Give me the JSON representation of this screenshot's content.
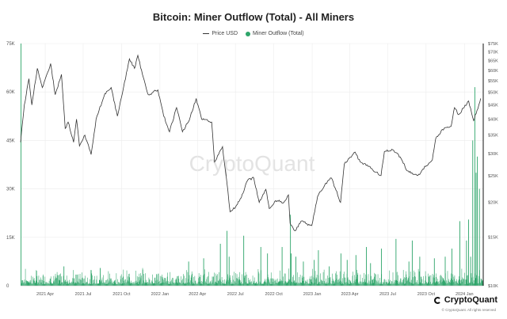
{
  "header": {
    "title": "Bitcoin: Miner Outflow (Total) - All Miners",
    "legend": [
      "Price USD",
      "Miner Outflow (Total)"
    ]
  },
  "colors": {
    "price": "#333333",
    "outflow": "#2ea56a",
    "grid": "#ececec",
    "watermark": "#e3e3e3"
  },
  "watermark": "CryptoQuant",
  "brand": {
    "name": "CryptoQuant",
    "copyright": "© CryptoQuant. All rights reserved"
  },
  "chart_data": {
    "type": "line",
    "title": "Bitcoin: Miner Outflow (Total) - All Miners",
    "x_range": [
      "2021-02-01",
      "2024-02-15"
    ],
    "x_ticks": [
      {
        "label": "2021 Apr",
        "date": "2021-04-01"
      },
      {
        "label": "2021 Jul",
        "date": "2021-07-01"
      },
      {
        "label": "2021 Oct",
        "date": "2021-10-01"
      },
      {
        "label": "2022 Jan",
        "date": "2022-01-01"
      },
      {
        "label": "2022 Apr",
        "date": "2022-04-01"
      },
      {
        "label": "2022 Jul",
        "date": "2022-07-01"
      },
      {
        "label": "2022 Oct",
        "date": "2022-10-01"
      },
      {
        "label": "2023 Jan",
        "date": "2023-01-01"
      },
      {
        "label": "2023 Apr",
        "date": "2023-04-01"
      },
      {
        "label": "2023 Jul",
        "date": "2023-07-01"
      },
      {
        "label": "2023 Oct",
        "date": "2023-10-01"
      },
      {
        "label": "2024 Jan",
        "date": "2024-01-01"
      }
    ],
    "left_axis": {
      "series": "Miner Outflow (Total)",
      "scale": "linear",
      "range": [
        0,
        75000
      ],
      "ticks": [
        {
          "label": "0",
          "value": 0
        },
        {
          "label": "15K",
          "value": 15000
        },
        {
          "label": "30K",
          "value": 30000
        },
        {
          "label": "45K",
          "value": 45000
        },
        {
          "label": "60K",
          "value": 60000
        },
        {
          "label": "75K",
          "value": 75000
        }
      ]
    },
    "right_axis": {
      "series": "Price USD",
      "scale": "log",
      "range": [
        10000,
        75000
      ],
      "ticks": [
        {
          "label": "$10K",
          "value": 10000
        },
        {
          "label": "$15K",
          "value": 15000
        },
        {
          "label": "$20K",
          "value": 20000
        },
        {
          "label": "$25K",
          "value": 25000
        },
        {
          "label": "$30K",
          "value": 30000
        },
        {
          "label": "$35K",
          "value": 35000
        },
        {
          "label": "$40K",
          "value": 40000
        },
        {
          "label": "$45K",
          "value": 45000
        },
        {
          "label": "$50K",
          "value": 50000
        },
        {
          "label": "$55K",
          "value": 55000
        },
        {
          "label": "$60K",
          "value": 60000
        },
        {
          "label": "$65K",
          "value": 65000
        },
        {
          "label": "$70K",
          "value": 70000
        },
        {
          "label": "$75K",
          "value": 75000
        }
      ]
    },
    "series": [
      {
        "name": "Price USD",
        "type": "line",
        "axis": "right",
        "points": [
          [
            "2021-02-01",
            33000
          ],
          [
            "2021-02-10",
            45000
          ],
          [
            "2021-02-21",
            56000
          ],
          [
            "2021-02-28",
            45000
          ],
          [
            "2021-03-13",
            61000
          ],
          [
            "2021-03-25",
            52000
          ],
          [
            "2021-04-14",
            63500
          ],
          [
            "2021-04-25",
            49000
          ],
          [
            "2021-05-10",
            58000
          ],
          [
            "2021-05-19",
            37000
          ],
          [
            "2021-05-26",
            39000
          ],
          [
            "2021-06-08",
            33000
          ],
          [
            "2021-06-15",
            40000
          ],
          [
            "2021-06-22",
            32000
          ],
          [
            "2021-07-05",
            35000
          ],
          [
            "2021-07-20",
            29800
          ],
          [
            "2021-08-01",
            40000
          ],
          [
            "2021-08-22",
            49500
          ],
          [
            "2021-09-06",
            52000
          ],
          [
            "2021-09-21",
            41000
          ],
          [
            "2021-10-01",
            48000
          ],
          [
            "2021-10-20",
            66000
          ],
          [
            "2021-11-01",
            61000
          ],
          [
            "2021-11-09",
            68000
          ],
          [
            "2021-11-20",
            58000
          ],
          [
            "2021-12-04",
            49000
          ],
          [
            "2021-12-27",
            51000
          ],
          [
            "2022-01-10",
            41000
          ],
          [
            "2022-01-24",
            36000
          ],
          [
            "2022-02-10",
            44000
          ],
          [
            "2022-02-24",
            36000
          ],
          [
            "2022-03-10",
            39000
          ],
          [
            "2022-03-29",
            47500
          ],
          [
            "2022-04-11",
            40000
          ],
          [
            "2022-05-05",
            39000
          ],
          [
            "2022-05-12",
            28000
          ],
          [
            "2022-05-31",
            31800
          ],
          [
            "2022-06-13",
            22000
          ],
          [
            "2022-06-18",
            18500
          ],
          [
            "2022-07-01",
            19200
          ],
          [
            "2022-07-15",
            20800
          ],
          [
            "2022-07-30",
            24000
          ],
          [
            "2022-08-14",
            24500
          ],
          [
            "2022-08-27",
            20000
          ],
          [
            "2022-09-12",
            22300
          ],
          [
            "2022-09-20",
            19000
          ],
          [
            "2022-10-05",
            20300
          ],
          [
            "2022-10-25",
            20000
          ],
          [
            "2022-11-05",
            21300
          ],
          [
            "2022-11-09",
            16800
          ],
          [
            "2022-11-21",
            15800
          ],
          [
            "2022-12-05",
            17100
          ],
          [
            "2022-12-31",
            16500
          ],
          [
            "2023-01-14",
            21000
          ],
          [
            "2023-01-31",
            23100
          ],
          [
            "2023-02-16",
            24500
          ],
          [
            "2023-03-10",
            20000
          ],
          [
            "2023-03-19",
            27500
          ],
          [
            "2023-04-14",
            30400
          ],
          [
            "2023-04-26",
            28000
          ],
          [
            "2023-05-15",
            27000
          ],
          [
            "2023-06-15",
            25000
          ],
          [
            "2023-06-23",
            30500
          ],
          [
            "2023-07-13",
            31000
          ],
          [
            "2023-07-31",
            29200
          ],
          [
            "2023-08-17",
            26000
          ],
          [
            "2023-09-11",
            25000
          ],
          [
            "2023-09-30",
            27000
          ],
          [
            "2023-10-16",
            28500
          ],
          [
            "2023-10-24",
            34000
          ],
          [
            "2023-11-09",
            36700
          ],
          [
            "2023-11-30",
            37700
          ],
          [
            "2023-12-08",
            44000
          ],
          [
            "2023-12-18",
            41500
          ],
          [
            "2024-01-11",
            46500
          ],
          [
            "2024-01-23",
            39500
          ],
          [
            "2024-01-31",
            43000
          ],
          [
            "2024-02-09",
            47500
          ]
        ]
      },
      {
        "name": "Miner Outflow (Total)",
        "type": "bar",
        "axis": "left",
        "baseline_range": [
          500,
          4500
        ],
        "spikes": [
          [
            "2021-02-01",
            75000
          ],
          [
            "2021-05-15",
            6000
          ],
          [
            "2021-08-10",
            5500
          ],
          [
            "2021-11-20",
            5000
          ],
          [
            "2022-03-10",
            7500
          ],
          [
            "2022-04-15",
            8500
          ],
          [
            "2022-05-25",
            13000
          ],
          [
            "2022-06-10",
            17000
          ],
          [
            "2022-06-15",
            9000
          ],
          [
            "2022-07-20",
            15500
          ],
          [
            "2022-08-30",
            12000
          ],
          [
            "2022-09-15",
            10000
          ],
          [
            "2022-10-20",
            12000
          ],
          [
            "2022-11-09",
            22000
          ],
          [
            "2022-11-11",
            10000
          ],
          [
            "2022-11-22",
            9000
          ],
          [
            "2022-12-10",
            7500
          ],
          [
            "2023-01-05",
            8000
          ],
          [
            "2023-01-15",
            11000
          ],
          [
            "2023-02-10",
            6000
          ],
          [
            "2023-03-10",
            10000
          ],
          [
            "2023-03-25",
            8000
          ],
          [
            "2023-04-15",
            9500
          ],
          [
            "2023-05-10",
            12000
          ],
          [
            "2023-05-20",
            7000
          ],
          [
            "2023-06-15",
            11500
          ],
          [
            "2023-07-20",
            14500
          ],
          [
            "2023-08-20",
            7500
          ],
          [
            "2023-08-28",
            14000
          ],
          [
            "2023-09-15",
            9000
          ],
          [
            "2023-10-20",
            8500
          ],
          [
            "2023-11-15",
            9000
          ],
          [
            "2023-12-01",
            11500
          ],
          [
            "2023-12-20",
            20000
          ],
          [
            "2024-01-05",
            14000
          ],
          [
            "2024-01-10",
            20500
          ],
          [
            "2024-01-15",
            9000
          ],
          [
            "2024-01-20",
            45000
          ],
          [
            "2024-01-25",
            61500
          ],
          [
            "2024-01-28",
            35000
          ],
          [
            "2024-01-31",
            40000
          ],
          [
            "2024-02-05",
            30000
          ]
        ]
      }
    ],
    "grid": true,
    "legend": "top-center"
  }
}
